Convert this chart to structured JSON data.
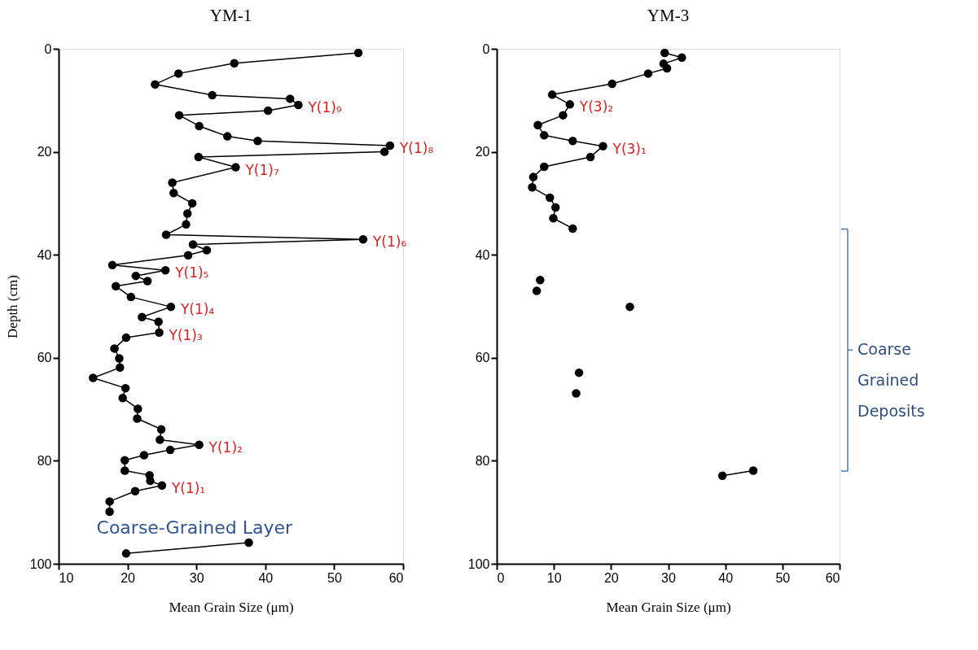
{
  "chart_data": [
    {
      "type": "line",
      "title": "YM-1",
      "xlabel": "Mean Grain Size (μm)",
      "ylabel": "Depth (cm)",
      "xlim": [
        10,
        60
      ],
      "xticks": [
        10,
        20,
        30,
        40,
        50,
        60
      ],
      "ylim": [
        100,
        0
      ],
      "yticks": [
        0,
        20,
        40,
        60,
        80,
        100
      ],
      "marker": "circle",
      "line_style": "solid",
      "grid": false,
      "series": [
        {
          "color": "#000000",
          "x": [
            53.5,
            35.5,
            27.4,
            24.0,
            32.3,
            43.6,
            44.8,
            40.4,
            27.5,
            30.4,
            34.5,
            38.9,
            58.1,
            57.3,
            30.3,
            35.7,
            26.5,
            26.7,
            29.4,
            28.7,
            28.5,
            25.6,
            54.2,
            29.5,
            31.5,
            28.8,
            17.8,
            25.5,
            21.2,
            22.9,
            18.3,
            20.5,
            26.3,
            22.1,
            24.5,
            24.6,
            19.8,
            18.1,
            18.8,
            18.9,
            15.0,
            19.7,
            19.3,
            21.5,
            21.4,
            24.9,
            24.7,
            30.4,
            26.2,
            22.4,
            19.6,
            19.6,
            23.2,
            23.3,
            25.0,
            21.1,
            17.4,
            17.4,
            null,
            37.6,
            19.8
          ],
          "values": [
            0.8,
            2.8,
            4.8,
            6.9,
            9.0,
            9.7,
            10.9,
            12.0,
            12.9,
            15.0,
            17.0,
            17.9,
            18.8,
            20.0,
            21.0,
            23.0,
            26.0,
            28.0,
            30.0,
            32.0,
            34.1,
            36.1,
            37.0,
            38.0,
            39.1,
            40.1,
            42.0,
            43.0,
            44.1,
            45.1,
            46.1,
            48.2,
            50.1,
            52.1,
            53.0,
            55.1,
            56.1,
            58.2,
            60.1,
            61.9,
            63.9,
            65.9,
            67.8,
            69.9,
            71.8,
            73.9,
            75.9,
            76.9,
            77.9,
            78.9,
            79.9,
            81.9,
            82.8,
            83.9,
            84.8,
            85.9,
            87.9,
            89.9,
            null,
            95.9,
            98.0
          ]
        }
      ],
      "annotations": [
        {
          "text": "Y(1)₉",
          "x": 44.8,
          "y": 10.9
        },
        {
          "text": "Y(1)₈",
          "x": 58.1,
          "y": 18.8
        },
        {
          "text": "Y(1)₇",
          "x": 35.7,
          "y": 23.0
        },
        {
          "text": "Y(1)₆",
          "x": 54.2,
          "y": 37.0
        },
        {
          "text": "Y(1)₅",
          "x": 25.5,
          "y": 43.0
        },
        {
          "text": "Y(1)₄",
          "x": 26.3,
          "y": 50.1
        },
        {
          "text": "Y(1)₃",
          "x": 24.6,
          "y": 55.1
        },
        {
          "text": "Y(1)₂",
          "x": 30.4,
          "y": 76.9
        },
        {
          "text": "Y(1)₁",
          "x": 25.0,
          "y": 84.8
        },
        "Coarse-Grained Layer"
      ]
    },
    {
      "type": "line",
      "title": "YM-3",
      "xlabel": "Mean Grain Size (μm)",
      "xlim": [
        0,
        60
      ],
      "xticks": [
        0,
        10,
        20,
        30,
        40,
        50,
        60
      ],
      "ylim": [
        100,
        0
      ],
      "yticks": [
        0,
        20,
        40,
        60,
        80,
        100
      ],
      "marker": "circle",
      "line_style": "solid",
      "grid": false,
      "series": [
        {
          "color": "#000000",
          "x": [
            29.4,
            32.4,
            29.2,
            29.8,
            26.5,
            20.2,
            9.7,
            12.8,
            11.6,
            7.2,
            8.3,
            13.3,
            18.6,
            16.4,
            8.3,
            6.4,
            6.2,
            9.3,
            10.3,
            9.9,
            13.3,
            null,
            7.6,
            null,
            7.0,
            null,
            23.3,
            null,
            14.4,
            null,
            13.9,
            null,
            44.9,
            39.5
          ],
          "values": [
            0.8,
            1.7,
            2.9,
            3.8,
            4.8,
            6.8,
            8.9,
            10.8,
            12.9,
            14.8,
            16.8,
            17.9,
            18.9,
            21.0,
            22.9,
            24.9,
            26.9,
            28.9,
            30.8,
            32.9,
            34.9,
            null,
            44.9,
            null,
            47.0,
            null,
            50.1,
            null,
            62.9,
            null,
            66.9,
            null,
            81.9,
            82.9
          ]
        }
      ],
      "annotations": [
        {
          "text": "Y(3)₂",
          "x": 12.8,
          "y": 10.8
        },
        {
          "text": "Y(3)₁",
          "x": 18.6,
          "y": 18.9
        },
        "Coarse Grained Deposits"
      ]
    }
  ]
}
